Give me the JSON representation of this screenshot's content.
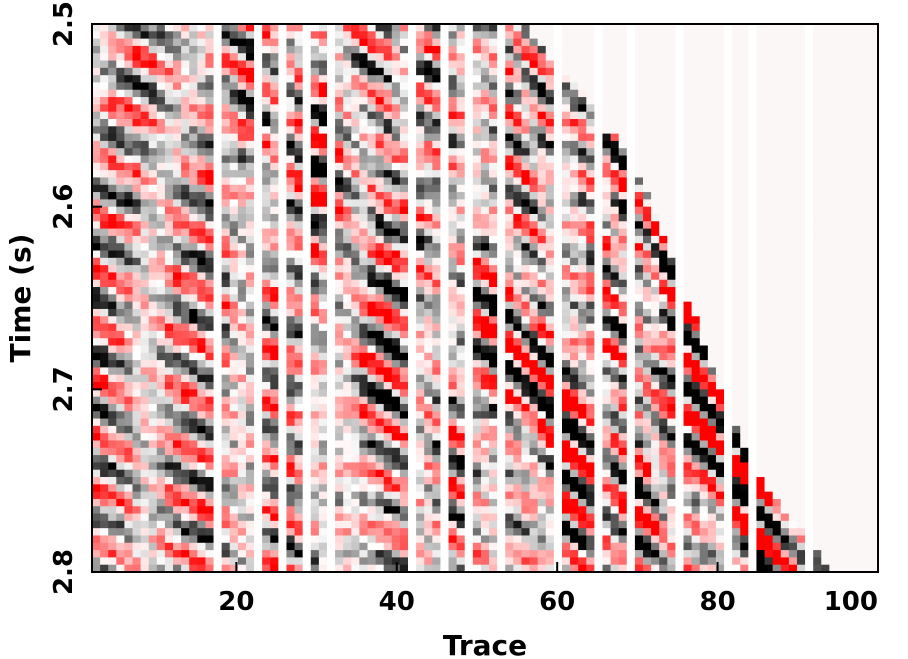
{
  "chart_data": {
    "type": "heatmap",
    "title": "",
    "xlabel": "Trace",
    "ylabel": "Time (s)",
    "xlim": [
      2,
      100
    ],
    "ylim": [
      2.5,
      2.8
    ],
    "y_inverted": true,
    "xticks": [
      {
        "value": 20,
        "label": "20"
      },
      {
        "value": 40,
        "label": "40"
      },
      {
        "value": 60,
        "label": "60"
      },
      {
        "value": 80,
        "label": "80"
      },
      {
        "value": 100,
        "label": "100"
      }
    ],
    "yticks": [
      {
        "value": 2.5,
        "label": "2.5"
      },
      {
        "value": 2.6,
        "label": "2.6"
      },
      {
        "value": 2.7,
        "label": "2.7"
      },
      {
        "value": 2.8,
        "label": "2.8"
      }
    ],
    "colormap": {
      "negative": "#ff0000",
      "zero": "#ffffff",
      "positive": "#000000"
    },
    "trace_count": 97,
    "sample_interval_s": 0.004,
    "dead_traces": [
      17,
      22,
      25,
      28,
      31,
      41,
      45,
      48,
      52,
      59,
      64,
      68,
      74,
      80,
      83,
      90
    ],
    "mute": [
      {
        "trace": 55,
        "time_s": 2.5
      },
      {
        "trace": 58,
        "time_s": 2.515
      },
      {
        "trace": 62,
        "time_s": 2.535
      },
      {
        "trace": 66,
        "time_s": 2.56
      },
      {
        "trace": 70,
        "time_s": 2.59
      },
      {
        "trace": 73,
        "time_s": 2.625
      },
      {
        "trace": 76,
        "time_s": 2.66
      },
      {
        "trace": 79,
        "time_s": 2.7
      },
      {
        "trace": 82,
        "time_s": 2.73
      },
      {
        "trace": 85,
        "time_s": 2.755
      },
      {
        "trace": 89,
        "time_s": 2.775
      },
      {
        "trace": 93,
        "time_s": 2.8
      }
    ],
    "events": [
      {
        "trace_start": 2,
        "time_start": 2.505,
        "slope_s_per_trace": 0.0035,
        "period_s": 0.034,
        "amplitude": 0.9
      },
      {
        "trace_start": 2,
        "time_start": 2.73,
        "slope_s_per_trace": 0.0032,
        "period_s": 0.03,
        "amplitude": 1.0
      },
      {
        "trace_start": 18,
        "time_start": 2.52,
        "slope_s_per_trace": 0.0045,
        "period_s": 0.028,
        "amplitude": 0.85
      },
      {
        "trace_start": 30,
        "time_start": 2.54,
        "slope_s_per_trace": 0.004,
        "period_s": 0.026,
        "amplitude": 0.9
      },
      {
        "trace_start": 52,
        "time_start": 2.5,
        "slope_s_per_trace": 0.006,
        "period_s": 0.024,
        "amplitude": 1.0
      },
      {
        "trace_start": 60,
        "time_start": 2.56,
        "slope_s_per_trace": 0.005,
        "period_s": 0.026,
        "amplitude": 0.8
      },
      {
        "trace_start": 82,
        "time_start": 2.73,
        "slope_s_per_trace": 0.005,
        "period_s": 0.022,
        "amplitude": 1.0
      }
    ]
  }
}
